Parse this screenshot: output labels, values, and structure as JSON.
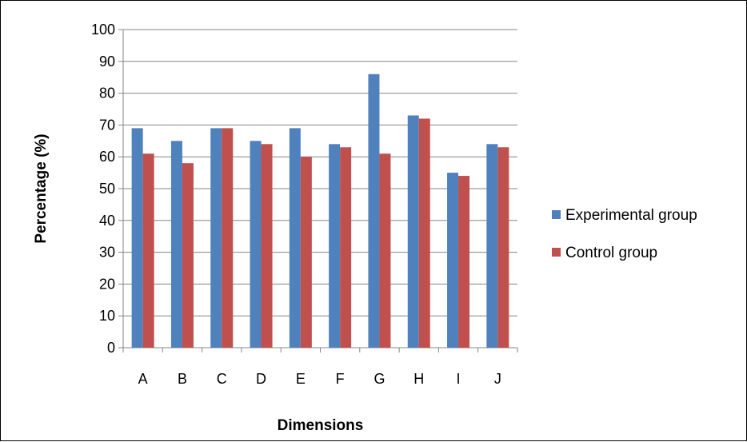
{
  "chart_data": {
    "type": "bar",
    "title": "",
    "xlabel": "Dimensions",
    "ylabel": "Percentage (%)",
    "categories": [
      "A",
      "B",
      "C",
      "D",
      "E",
      "F",
      "G",
      "H",
      "I",
      "J"
    ],
    "series": [
      {
        "name": "Experimental group",
        "color": "#4f81bd",
        "values": [
          69,
          65,
          69,
          65,
          69,
          64,
          86,
          73,
          55,
          64
        ]
      },
      {
        "name": "Control group",
        "color": "#c0504d",
        "values": [
          61,
          58,
          69,
          64,
          60,
          63,
          61,
          72,
          54,
          63
        ]
      }
    ],
    "ylim": [
      0,
      100
    ],
    "yticks": [
      0,
      10,
      20,
      30,
      40,
      50,
      60,
      70,
      80,
      90,
      100
    ],
    "grid": true,
    "legend_position": "right"
  }
}
